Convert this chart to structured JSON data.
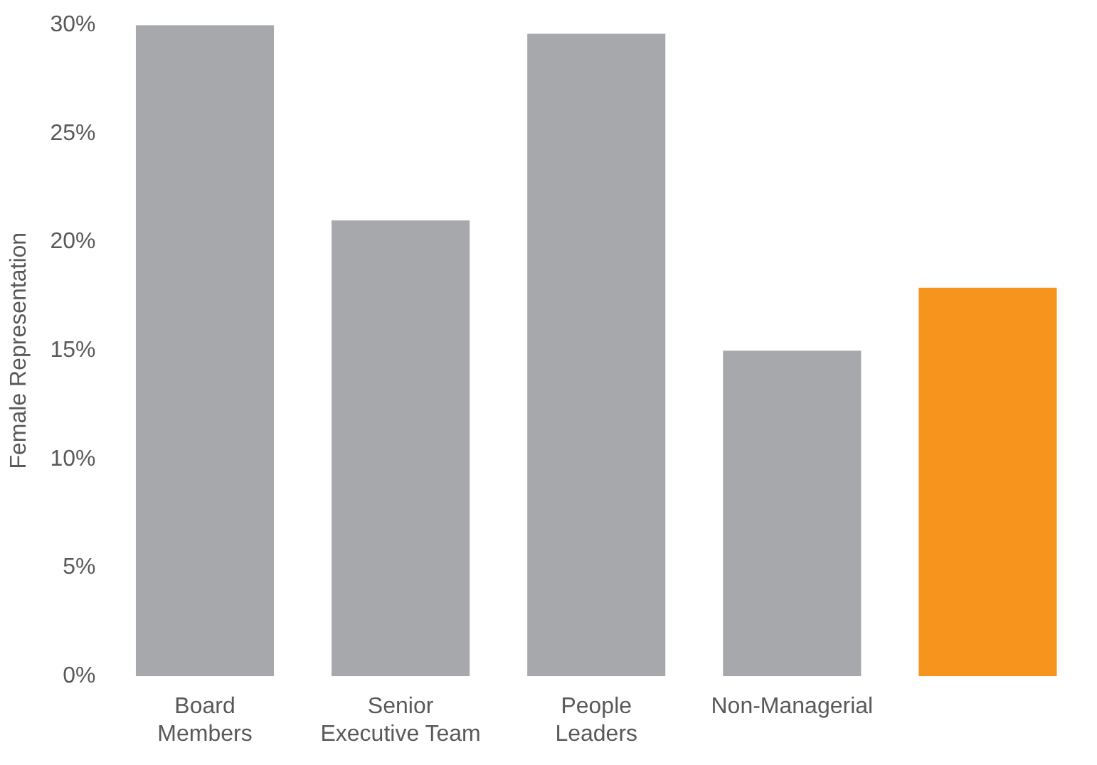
{
  "chart_data": {
    "type": "bar",
    "ylabel": "Female Representation",
    "categories": [
      "Board Members",
      "Senior Executive Team",
      "People Leaders",
      "Non-Managerial",
      null
    ],
    "values": [
      30,
      21,
      29.6,
      15,
      17.9
    ],
    "colors": [
      "#a7a8ac",
      "#a7a8ac",
      "#a7a8ac",
      "#a7a8ac",
      "#f7941d"
    ],
    "ylim": [
      0,
      30
    ],
    "yticks": [
      {
        "value": 0,
        "label": "0%"
      },
      {
        "value": 5,
        "label": "5%"
      },
      {
        "value": 10,
        "label": "10%"
      },
      {
        "value": 15,
        "label": "15%"
      },
      {
        "value": 20,
        "label": "20%"
      },
      {
        "value": 25,
        "label": "25%"
      },
      {
        "value": 30,
        "label": "30%"
      }
    ],
    "grid": false,
    "legend": false
  }
}
